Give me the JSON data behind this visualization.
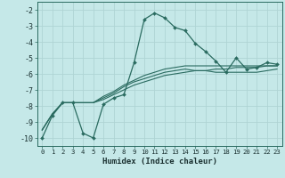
{
  "xlabel": "Humidex (Indice chaleur)",
  "background_color": "#c5e8e8",
  "grid_color": "#afd4d4",
  "line_color": "#2a6b60",
  "xlim": [
    -0.5,
    23.5
  ],
  "ylim": [
    -10.5,
    -1.5
  ],
  "xticks": [
    0,
    1,
    2,
    3,
    4,
    5,
    6,
    7,
    8,
    9,
    10,
    11,
    12,
    13,
    14,
    15,
    16,
    17,
    18,
    19,
    20,
    21,
    22,
    23
  ],
  "yticks": [
    -10,
    -9,
    -8,
    -7,
    -6,
    -5,
    -4,
    -3,
    -2
  ],
  "series": [
    {
      "x": [
        0,
        1,
        2,
        3,
        4,
        5,
        6,
        7,
        8,
        9,
        10,
        11,
        12,
        13,
        14,
        15,
        16,
        17,
        18,
        19,
        20,
        21,
        22,
        23
      ],
      "y": [
        -10.0,
        -8.6,
        -7.8,
        -7.8,
        -9.7,
        -10.0,
        -7.9,
        -7.5,
        -7.3,
        -5.3,
        -2.6,
        -2.2,
        -2.5,
        -3.1,
        -3.3,
        -4.1,
        -4.6,
        -5.2,
        -5.9,
        -5.0,
        -5.7,
        -5.6,
        -5.3,
        -5.4
      ],
      "marker": true
    },
    {
      "x": [
        0,
        1,
        2,
        3,
        4,
        5,
        6,
        7,
        8,
        9,
        10,
        11,
        12,
        13,
        14,
        15,
        16,
        17,
        18,
        19,
        20,
        21,
        22,
        23
      ],
      "y": [
        -9.5,
        -8.5,
        -7.8,
        -7.8,
        -7.8,
        -7.8,
        -7.6,
        -7.3,
        -7.0,
        -6.7,
        -6.5,
        -6.3,
        -6.1,
        -6.0,
        -5.9,
        -5.8,
        -5.8,
        -5.7,
        -5.7,
        -5.6,
        -5.6,
        -5.6,
        -5.5,
        -5.5
      ],
      "marker": false
    },
    {
      "x": [
        0,
        1,
        2,
        3,
        4,
        5,
        6,
        7,
        8,
        9,
        10,
        11,
        12,
        13,
        14,
        15,
        16,
        17,
        18,
        19,
        20,
        21,
        22,
        23
      ],
      "y": [
        -9.5,
        -8.5,
        -7.8,
        -7.8,
        -7.8,
        -7.8,
        -7.4,
        -7.1,
        -6.7,
        -6.4,
        -6.1,
        -5.9,
        -5.7,
        -5.6,
        -5.5,
        -5.5,
        -5.5,
        -5.5,
        -5.5,
        -5.5,
        -5.5,
        -5.5,
        -5.5,
        -5.5
      ],
      "marker": false
    },
    {
      "x": [
        0,
        1,
        2,
        3,
        4,
        5,
        6,
        7,
        8,
        9,
        10,
        11,
        12,
        13,
        14,
        15,
        16,
        17,
        18,
        19,
        20,
        21,
        22,
        23
      ],
      "y": [
        -9.5,
        -8.5,
        -7.8,
        -7.8,
        -7.8,
        -7.8,
        -7.5,
        -7.2,
        -6.8,
        -6.5,
        -6.3,
        -6.1,
        -5.9,
        -5.8,
        -5.7,
        -5.8,
        -5.8,
        -5.9,
        -5.9,
        -5.9,
        -5.9,
        -5.9,
        -5.8,
        -5.7
      ],
      "marker": false
    }
  ]
}
